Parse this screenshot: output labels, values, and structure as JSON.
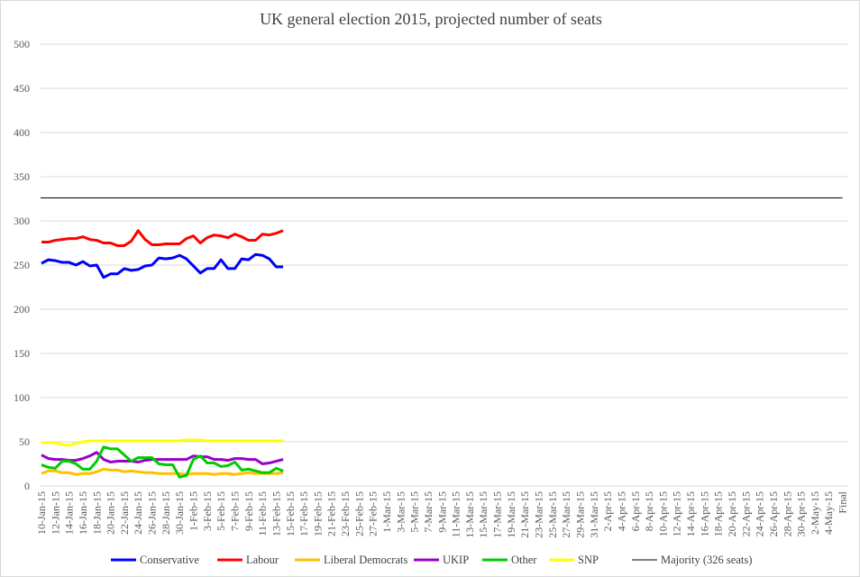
{
  "chart_data": {
    "type": "line",
    "title": "UK general election 2015, projected number of seats",
    "xlabel": "",
    "ylabel": "",
    "ylim": [
      0,
      500
    ],
    "yticks": [
      0,
      50,
      100,
      150,
      200,
      250,
      300,
      350,
      400,
      450,
      500
    ],
    "grid": true,
    "legend_position": "bottom",
    "x_tick_labels": [
      "10-Jan-15",
      "12-Jan-15",
      "14-Jan-15",
      "16-Jan-15",
      "18-Jan-15",
      "20-Jan-15",
      "22-Jan-15",
      "24-Jan-15",
      "26-Jan-15",
      "28-Jan-15",
      "30-Jan-15",
      "1-Feb-15",
      "3-Feb-15",
      "5-Feb-15",
      "7-Feb-15",
      "9-Feb-15",
      "11-Feb-15",
      "13-Feb-15",
      "15-Feb-15",
      "17-Feb-15",
      "19-Feb-15",
      "21-Feb-15",
      "23-Feb-15",
      "25-Feb-15",
      "27-Feb-15",
      "1-Mar-15",
      "3-Mar-15",
      "5-Mar-15",
      "7-Mar-15",
      "9-Mar-15",
      "11-Mar-15",
      "13-Mar-15",
      "15-Mar-15",
      "17-Mar-15",
      "19-Mar-15",
      "21-Mar-15",
      "23-Mar-15",
      "25-Mar-15",
      "27-Mar-15",
      "29-Mar-15",
      "31-Mar-15",
      "2-Apr-15",
      "4-Apr-15",
      "6-Apr-15",
      "8-Apr-15",
      "10-Apr-15",
      "12-Apr-15",
      "14-Apr-15",
      "16-Apr-15",
      "18-Apr-15",
      "20-Apr-15",
      "22-Apr-15",
      "24-Apr-15",
      "26-Apr-15",
      "28-Apr-15",
      "30-Apr-15",
      "2-May-15",
      "4-May-15",
      "Final"
    ],
    "x_start": "10-Jan-15",
    "x_step": "1 day",
    "series": [
      {
        "name": "Conservative",
        "color": "#0000ff",
        "values": [
          252,
          256,
          255,
          253,
          253,
          250,
          254,
          249,
          250,
          236,
          240,
          240,
          246,
          244,
          245,
          249,
          250,
          258,
          257,
          258,
          261,
          257,
          249,
          241,
          246,
          246,
          256,
          246,
          246,
          257,
          256,
          262,
          261,
          257,
          248,
          248
        ]
      },
      {
        "name": "Labour",
        "color": "#ff0000",
        "values": [
          276,
          276,
          278,
          279,
          280,
          280,
          282,
          279,
          278,
          275,
          275,
          272,
          272,
          277,
          289,
          279,
          273,
          273,
          274,
          274,
          274,
          280,
          283,
          275,
          281,
          284,
          283,
          281,
          285,
          282,
          278,
          278,
          285,
          284,
          286,
          289
        ]
      },
      {
        "name": "Liberal Democrats",
        "color": "#ffc000",
        "values": [
          14,
          17,
          17,
          15,
          15,
          13,
          14,
          14,
          16,
          19,
          18,
          18,
          16,
          17,
          16,
          15,
          15,
          14,
          14,
          14,
          14,
          13,
          14,
          14,
          14,
          13,
          14,
          14,
          13,
          14,
          15,
          14,
          14,
          14,
          14,
          15
        ]
      },
      {
        "name": "UKIP",
        "color": "#9900cc",
        "values": [
          35,
          31,
          30,
          30,
          29,
          29,
          31,
          34,
          38,
          30,
          27,
          28,
          28,
          28,
          27,
          29,
          30,
          30,
          30,
          30,
          30,
          30,
          34,
          33,
          33,
          30,
          30,
          29,
          31,
          31,
          30,
          30,
          25,
          26,
          28,
          30
        ]
      },
      {
        "name": "Other",
        "color": "#00cc00",
        "values": [
          24,
          21,
          20,
          28,
          28,
          25,
          19,
          19,
          28,
          44,
          42,
          42,
          35,
          28,
          32,
          32,
          32,
          25,
          24,
          24,
          10,
          12,
          30,
          34,
          26,
          26,
          22,
          23,
          27,
          18,
          19,
          17,
          15,
          15,
          20,
          17
        ]
      },
      {
        "name": "SNP",
        "color": "#ffff00",
        "values": [
          49,
          49,
          49,
          47,
          46,
          48,
          50,
          51,
          51,
          51,
          51,
          51,
          51,
          51,
          51,
          51,
          51,
          51,
          51,
          51,
          51,
          52,
          52,
          52,
          51,
          51,
          51,
          51,
          51,
          51,
          51,
          51,
          51,
          51,
          51,
          51
        ]
      },
      {
        "name": "Majority (326 seats)",
        "color": "#000000",
        "constant": 326
      }
    ]
  }
}
